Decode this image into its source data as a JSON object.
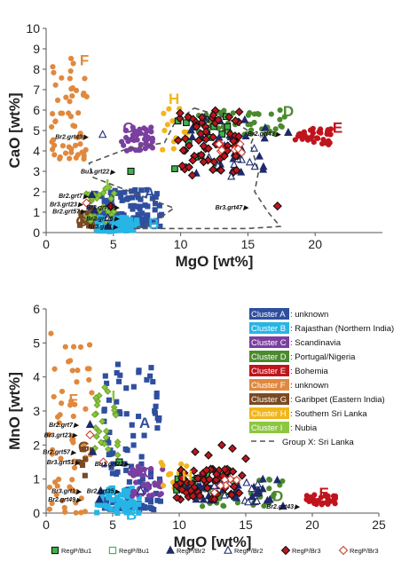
{
  "chart_data": [
    {
      "type": "scatter",
      "title": "",
      "xlabel": "MgO [wt%]",
      "ylabel": "CaO [wt%]",
      "xlim": [
        0,
        25
      ],
      "ylim": [
        0,
        10
      ],
      "xticks": [
        0,
        5,
        10,
        15,
        20
      ],
      "yticks": [
        0,
        1,
        2,
        3,
        4,
        5,
        6,
        7,
        8,
        9,
        10
      ],
      "grid": false,
      "cluster_labels": [
        {
          "text": "A",
          "x": 7.3,
          "y": 1.7,
          "color": "#2f4f9f"
        },
        {
          "text": "B",
          "x": 7.6,
          "y": 0.2,
          "color": "#27b5e6"
        },
        {
          "text": "C",
          "x": 5.7,
          "y": 4.9,
          "color": "#7b3fa0"
        },
        {
          "text": "D",
          "x": 17.6,
          "y": 5.7,
          "color": "#4b8a2e"
        },
        {
          "text": "E",
          "x": 21.3,
          "y": 4.9,
          "color": "#c0141c"
        },
        {
          "text": "F",
          "x": 2.5,
          "y": 8.2,
          "color": "#e0893e"
        },
        {
          "text": "G",
          "x": 2.2,
          "y": 0.3,
          "color": "#7a4a22"
        },
        {
          "text": "H",
          "x": 9.1,
          "y": 6.3,
          "color": "#f2b51a"
        },
        {
          "text": "I",
          "x": 4.4,
          "y": 2.1,
          "color": "#8dc63f"
        }
      ],
      "annotations": [
        {
          "text": "Br2.grt49",
          "x": 2.7,
          "y": 4.7
        },
        {
          "text": "Bu1.grt22",
          "x": 4.7,
          "y": 3.0
        },
        {
          "text": "Br2.grt7",
          "x": 2.7,
          "y": 1.8
        },
        {
          "text": "Br3.grt23",
          "x": 2.3,
          "y": 1.4
        },
        {
          "text": "Br2.grt57",
          "x": 2.5,
          "y": 1.05
        },
        {
          "text": "Br3.grt51",
          "x": 5.0,
          "y": 1.25
        },
        {
          "text": "Br2.grt35",
          "x": 5.0,
          "y": 0.7
        },
        {
          "text": "Br3.grt1",
          "x": 4.9,
          "y": 0.3
        },
        {
          "text": "Br2.grt43",
          "x": 17.0,
          "y": 4.85
        },
        {
          "text": "Br3.grt47",
          "x": 14.6,
          "y": 1.25
        }
      ],
      "group_x_outline": [
        [
          11,
          6.1
        ],
        [
          13.5,
          5.6
        ],
        [
          15.5,
          4.8
        ],
        [
          15.2,
          4.3
        ],
        [
          15.8,
          3.0
        ],
        [
          15.5,
          2.0
        ],
        [
          16.5,
          1.0
        ],
        [
          17.4,
          0.3
        ],
        [
          15,
          0.2
        ],
        [
          10,
          0.2
        ],
        [
          6.5,
          0.2
        ],
        [
          8,
          0.5
        ],
        [
          9.5,
          1.2
        ],
        [
          7.5,
          1.7
        ],
        [
          5.5,
          2.2
        ],
        [
          3.5,
          2.7
        ],
        [
          3.2,
          3.4
        ],
        [
          6,
          4.1
        ],
        [
          8.8,
          4.4
        ],
        [
          9.5,
          5.3
        ],
        [
          11,
          6.1
        ]
      ],
      "cluster_points": [
        {
          "cluster": "A",
          "n": 120,
          "x": [
            3.2,
            8.6
          ],
          "y": [
            0.3,
            2.1
          ]
        },
        {
          "cluster": "B",
          "n": 80,
          "x": [
            3.7,
            6.8
          ],
          "y": [
            0.05,
            0.75
          ]
        },
        {
          "cluster": "C",
          "n": 45,
          "x": [
            5.6,
            8.0
          ],
          "y": [
            4.0,
            5.2
          ]
        },
        {
          "cluster": "D",
          "n": 45,
          "x": [
            10.8,
            18.2
          ],
          "y": [
            4.8,
            6.0
          ]
        },
        {
          "cluster": "E",
          "n": 40,
          "x": [
            18.5,
            21.2
          ],
          "y": [
            4.3,
            5.1
          ]
        },
        {
          "cluster": "F",
          "n": 55,
          "x": [
            0.4,
            3.1
          ],
          "y": [
            3.6,
            8.8
          ]
        },
        {
          "cluster": "G",
          "n": 14,
          "x": [
            2.5,
            3.8
          ],
          "y": [
            0.3,
            1.2
          ]
        },
        {
          "cluster": "H",
          "n": 14,
          "x": [
            8.5,
            10.6
          ],
          "y": [
            4.0,
            6.3
          ]
        },
        {
          "cluster": "I",
          "n": 28,
          "x": [
            2.9,
            5.2
          ],
          "y": [
            0.5,
            2.3
          ]
        }
      ],
      "sample_points": [
        {
          "series": "RegP/Bu1",
          "n": 14,
          "x": [
            9.5,
            13.5
          ],
          "y": [
            3.0,
            5.8
          ]
        },
        {
          "series": "RegP/Br2",
          "n": 30,
          "x": [
            10.5,
            16.5
          ],
          "y": [
            2.8,
            5.7
          ]
        },
        {
          "series": "RegP/Br2 open",
          "n": 14,
          "x": [
            12.0,
            15.8
          ],
          "y": [
            2.6,
            4.4
          ]
        },
        {
          "series": "RegP/Br3",
          "n": 65,
          "x": [
            9.8,
            14.5
          ],
          "y": [
            2.8,
            6.1
          ]
        },
        {
          "series": "RegP/Br3 open",
          "n": 8,
          "x": [
            12.8,
            14.6
          ],
          "y": [
            3.6,
            5.0
          ]
        }
      ],
      "special_points": [
        {
          "series": "RegP/Br2 open",
          "x": 4.2,
          "y": 4.8
        },
        {
          "series": "RegP/Bu1",
          "x": 6.3,
          "y": 3.0
        },
        {
          "series": "RegP/Br2",
          "x": 3.4,
          "y": 1.85
        },
        {
          "series": "RegP/Br3 open",
          "x": 3.0,
          "y": 1.45
        },
        {
          "series": "RegP/Br2",
          "x": 3.6,
          "y": 1.1
        },
        {
          "series": "RegP/Br3",
          "x": 4.8,
          "y": 1.28
        },
        {
          "series": "RegP/Br2 open",
          "x": 4.6,
          "y": 0.72
        },
        {
          "series": "RegP/Br2",
          "x": 4.6,
          "y": 0.3
        },
        {
          "series": "RegP/Br2",
          "x": 18.0,
          "y": 4.9
        },
        {
          "series": "RegP/Br3",
          "x": 17.2,
          "y": 1.3
        }
      ]
    },
    {
      "type": "scatter",
      "title": "",
      "xlabel": "MgO [wt%]",
      "ylabel": "MnO [wt%]",
      "xlim": [
        0,
        25
      ],
      "ylim": [
        0,
        6
      ],
      "xticks": [
        0,
        5,
        10,
        15,
        20,
        25
      ],
      "yticks": [
        0,
        1,
        2,
        3,
        4,
        5,
        6
      ],
      "grid": false,
      "cluster_labels": [
        {
          "text": "A",
          "x": 7.0,
          "y": 2.5,
          "color": "#2f4f9f"
        },
        {
          "text": "B",
          "x": 6.0,
          "y": -0.2,
          "color": "#27b5e6"
        },
        {
          "text": "C",
          "x": 7.3,
          "y": 1.05,
          "color": "#7b3fa0"
        },
        {
          "text": "D",
          "x": 17.0,
          "y": 0.35,
          "color": "#4b8a2e"
        },
        {
          "text": "E",
          "x": 20.5,
          "y": 0.45,
          "color": "#c0141c"
        },
        {
          "text": "F",
          "x": 1.7,
          "y": 3.2,
          "color": "#e0893e"
        },
        {
          "text": "G",
          "x": 2.4,
          "y": 1.8,
          "color": "#7a4a22"
        },
        {
          "text": "H",
          "x": 10.2,
          "y": 0.95,
          "color": "#f2b51a"
        },
        {
          "text": "I",
          "x": 4.9,
          "y": 3.3,
          "color": "#8dc63f"
        }
      ],
      "annotations": [
        {
          "text": "Br2.grt7",
          "x": 2.0,
          "y": 2.6
        },
        {
          "text": "Br3.grt23",
          "x": 1.9,
          "y": 2.3
        },
        {
          "text": "Br2.grt57",
          "x": 1.8,
          "y": 1.8
        },
        {
          "text": "Br3.grt51",
          "x": 2.1,
          "y": 1.5
        },
        {
          "text": "Bu1.grt22",
          "x": 5.8,
          "y": 1.45
        },
        {
          "text": "Br3.grt1",
          "x": 2.2,
          "y": 0.65
        },
        {
          "text": "Br2.grt35",
          "x": 5.1,
          "y": 0.65
        },
        {
          "text": "Br2.grt49",
          "x": 2.2,
          "y": 0.4
        },
        {
          "text": "Br2.grt43",
          "x": 18.6,
          "y": 0.2
        }
      ],
      "cluster_points": [
        {
          "cluster": "A",
          "n": 110,
          "x": [
            4.2,
            8.6
          ],
          "y": [
            0.1,
            4.4
          ]
        },
        {
          "cluster": "B",
          "n": 70,
          "x": [
            3.8,
            7.0
          ],
          "y": [
            0.0,
            0.8
          ]
        },
        {
          "cluster": "C",
          "n": 40,
          "x": [
            6.2,
            8.8
          ],
          "y": [
            0.5,
            1.4
          ]
        },
        {
          "cluster": "D",
          "n": 40,
          "x": [
            11.0,
            18.0
          ],
          "y": [
            0.2,
            1.0
          ]
        },
        {
          "cluster": "E",
          "n": 30,
          "x": [
            19.5,
            21.8
          ],
          "y": [
            0.25,
            0.55
          ]
        },
        {
          "cluster": "F",
          "n": 60,
          "x": [
            0.2,
            3.5
          ],
          "y": [
            0.0,
            5.4
          ]
        },
        {
          "cluster": "G",
          "n": 10,
          "x": [
            2.4,
            3.6
          ],
          "y": [
            1.0,
            2.0
          ]
        },
        {
          "cluster": "H",
          "n": 14,
          "x": [
            8.6,
            10.6
          ],
          "y": [
            0.7,
            1.6
          ]
        },
        {
          "cluster": "I",
          "n": 26,
          "x": [
            3.6,
            5.4
          ],
          "y": [
            1.5,
            3.7
          ]
        }
      ],
      "sample_points": [
        {
          "series": "RegP/Bu1",
          "n": 14,
          "x": [
            9.8,
            13.5
          ],
          "y": [
            0.6,
            1.2
          ]
        },
        {
          "series": "RegP/Br2",
          "n": 30,
          "x": [
            10.5,
            17.5
          ],
          "y": [
            0.3,
            1.1
          ]
        },
        {
          "series": "RegP/Br2 open",
          "n": 12,
          "x": [
            12.0,
            16.0
          ],
          "y": [
            0.3,
            1.0
          ]
        },
        {
          "series": "RegP/Br3",
          "n": 60,
          "x": [
            9.8,
            14.8
          ],
          "y": [
            0.4,
            1.3
          ]
        },
        {
          "series": "RegP/Br3 open",
          "n": 6,
          "x": [
            12.5,
            14.5
          ],
          "y": [
            0.5,
            1.0
          ]
        }
      ],
      "scattered_br3": [
        [
          13.2,
          2.0
        ],
        [
          14.0,
          1.9
        ],
        [
          12.2,
          1.7
        ],
        [
          15.0,
          1.6
        ],
        [
          11.2,
          1.8
        ]
      ],
      "special_points": [
        {
          "series": "RegP/Br2",
          "x": 3.3,
          "y": 2.6
        },
        {
          "series": "RegP/Br3 open",
          "x": 3.3,
          "y": 2.3
        },
        {
          "series": "RegP/Br2",
          "x": 3.5,
          "y": 1.8
        },
        {
          "series": "RegP/Br3 open",
          "x": 4.3,
          "y": 1.5
        },
        {
          "series": "RegP/Bu1",
          "x": 5.5,
          "y": 1.5
        },
        {
          "series": "RegP/Br2",
          "x": 4.1,
          "y": 0.65
        },
        {
          "series": "RegP/Br2 open",
          "x": 7.1,
          "y": 0.65
        },
        {
          "series": "RegP/Br2",
          "x": 4.0,
          "y": 0.4
        },
        {
          "series": "RegP/Br2",
          "x": 17.8,
          "y": 0.2
        }
      ]
    }
  ],
  "cluster_legend": {
    "items": [
      {
        "box": "Cluster A",
        "desc": ": unknown",
        "color": "#2f4f9f"
      },
      {
        "box": "Cluster B",
        "desc": ": Rajasthan (Northern India)",
        "color": "#27b5e6"
      },
      {
        "box": "Cluster C",
        "desc": ": Scandinavia",
        "color": "#7b3fa0"
      },
      {
        "box": "Cluster D",
        "desc": ": Portugal/Nigeria",
        "color": "#4b8a2e"
      },
      {
        "box": "Cluster E",
        "desc": ": Bohemia",
        "color": "#c0141c"
      },
      {
        "box": "Cluster F",
        "desc": ": unknown",
        "color": "#e0893e"
      },
      {
        "box": "Cluster G",
        "desc": ": Garibpet (Eastern India)",
        "color": "#7a4a22"
      },
      {
        "box": "Cluster H",
        "desc": ": Southern Sri Lanka",
        "color": "#f2b51a"
      },
      {
        "box": "Cluster I",
        "desc": ": Nubia",
        "color": "#8dc63f"
      }
    ],
    "group_x": "Group X: Sri Lanka"
  },
  "sample_legend": [
    {
      "label": "RegP/Bu1",
      "marker": "square",
      "filled": true,
      "fill": "#3cb44b",
      "stroke": "#111111"
    },
    {
      "label": "RegP/Bu1",
      "marker": "square",
      "filled": false,
      "fill": "none",
      "stroke": "#3cb44b"
    },
    {
      "label": "RegP/Br2",
      "marker": "triangle",
      "filled": true,
      "fill": "#1f2a6b",
      "stroke": "#1f2a6b"
    },
    {
      "label": "RegP/Br2",
      "marker": "triangle",
      "filled": false,
      "fill": "none",
      "stroke": "#1f2a6b"
    },
    {
      "label": "RegP/Br3",
      "marker": "diamond",
      "filled": true,
      "fill": "#c0141c",
      "stroke": "#111111"
    },
    {
      "label": "RegP/Br3",
      "marker": "diamond",
      "filled": false,
      "fill": "none",
      "stroke": "#d23a2a"
    }
  ],
  "colors": {
    "A": "#2f4f9f",
    "B": "#27b5e6",
    "C": "#7b3fa0",
    "D": "#4b8a2e",
    "E": "#c0141c",
    "F": "#e0893e",
    "G": "#7a4a22",
    "H": "#f2b51a",
    "I": "#8dc63f"
  }
}
